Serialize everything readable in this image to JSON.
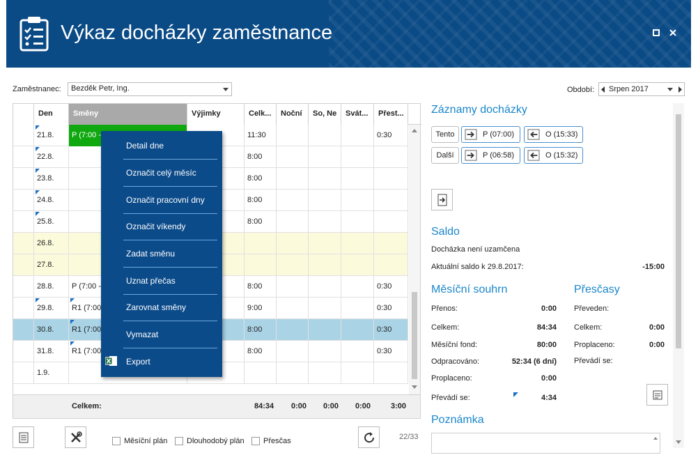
{
  "window": {
    "title": "Výkaz docházky zaměstnance"
  },
  "employee": {
    "label": "Zaměstnanec:",
    "value": "Bezděk Petr, Ing."
  },
  "period": {
    "label": "Období:",
    "value": "Srpen 2017"
  },
  "grid": {
    "columns": [
      "Den",
      "Směny",
      "Výjimky",
      "Celk...",
      "Noční",
      "So, Ne",
      "Svát...",
      "Přest..."
    ],
    "rows": [
      {
        "den": "21.8.",
        "smeny": "P (7:00 -",
        "celk": "11:30",
        "prest": "0:30"
      },
      {
        "den": "22.8.",
        "smeny": "",
        "celk": "8:00",
        "prest": ""
      },
      {
        "den": "23.8.",
        "smeny": "",
        "celk": "8:00",
        "prest": ""
      },
      {
        "den": "24.8.",
        "smeny": "",
        "celk": "8:00",
        "prest": ""
      },
      {
        "den": "25.8.",
        "smeny": "",
        "celk": "8:00",
        "prest": ""
      },
      {
        "den": "26.8.",
        "smeny": "",
        "celk": "",
        "prest": ""
      },
      {
        "den": "27.8.",
        "smeny": "",
        "celk": "",
        "prest": ""
      },
      {
        "den": "28.8.",
        "smeny": "P (7:00 -",
        "celk": "8:00",
        "prest": "0:30"
      },
      {
        "den": "29.8.",
        "smeny": "R1 (7:00",
        "celk": "9:00",
        "prest": "0:30"
      },
      {
        "den": "30.8.",
        "smeny": "R1 (7:00",
        "celk": "8:00",
        "prest": "0:30"
      },
      {
        "den": "31.8.",
        "smeny": "R1 (7:00",
        "celk": "8:00",
        "prest": "0:30"
      },
      {
        "den": "1.9.",
        "smeny": "",
        "celk": "",
        "prest": ""
      }
    ],
    "footer": {
      "label": "Celkem:",
      "celk": "84:34",
      "nocni": "0:00",
      "sone": "0:00",
      "svat": "0:00",
      "prest": "3:00"
    }
  },
  "context_menu": [
    "Detail dne",
    "Označit celý měsíc",
    "Označit pracovní dny",
    "Označit víkendy",
    "Zadat směnu",
    "Uznat přečas",
    "Zarovnat směny",
    "Vymazat",
    "Export"
  ],
  "bottom": {
    "monthly_plan": "Měsíční plán",
    "long_plan": "Dlouhodobý plán",
    "overtime": "Přesčas",
    "page": "22/33"
  },
  "records": {
    "title": "Záznamy docházky",
    "this_label": "Tento",
    "this_in": "P (07:00)",
    "this_out": "O (15:33)",
    "next_label": "Další",
    "next_in": "P (06:58)",
    "next_out": "O (15:32)"
  },
  "saldo": {
    "title": "Saldo",
    "status": "Docházka není uzamčena",
    "current_label": "Aktuální saldo k 29.8.2017:",
    "current_value": "-15:00"
  },
  "monthly": {
    "title": "Měsíční souhrn",
    "items": [
      {
        "label": "Přenos:",
        "value": "0:00"
      },
      {
        "label": "Celkem:",
        "value": "84:34"
      },
      {
        "label": "Měsíční fond:",
        "value": "80:00"
      },
      {
        "label": "Odpracováno:",
        "value": "52:34 (6 dní)"
      },
      {
        "label": "Proplaceno:",
        "value": "0:00"
      },
      {
        "label": "Převádí se:",
        "value": "4:34"
      }
    ]
  },
  "overtime": {
    "title": "Přesčasy",
    "items": [
      {
        "label": "Převeden:",
        "value": ""
      },
      {
        "label": "Celkem:",
        "value": "0:00"
      },
      {
        "label": "Proplaceno:",
        "value": "0:00"
      },
      {
        "label": "Převádí se:",
        "value": ""
      }
    ]
  },
  "note": {
    "title": "Poznámka"
  }
}
